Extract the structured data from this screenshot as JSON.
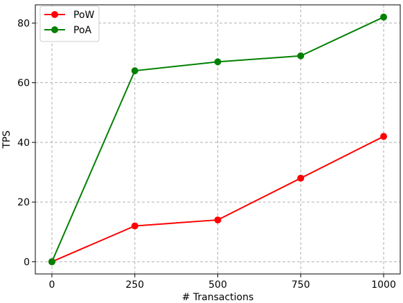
{
  "chart_data": {
    "type": "line",
    "title": "",
    "xlabel": "# Transactions",
    "ylabel": "TPS",
    "x": [
      0,
      250,
      500,
      750,
      1000
    ],
    "xticks": [
      0,
      250,
      500,
      750,
      1000
    ],
    "yticks": [
      0,
      20,
      40,
      60,
      80
    ],
    "xlim": [
      -50,
      1050
    ],
    "ylim": [
      -4.1,
      86.1
    ],
    "grid": true,
    "legend_position": "top-left",
    "series": [
      {
        "name": "PoW",
        "color": "#ff0000",
        "values": [
          0,
          12,
          14,
          28,
          42
        ]
      },
      {
        "name": "PoA",
        "color": "#008000",
        "values": [
          0,
          64,
          67,
          69,
          82
        ]
      }
    ]
  }
}
